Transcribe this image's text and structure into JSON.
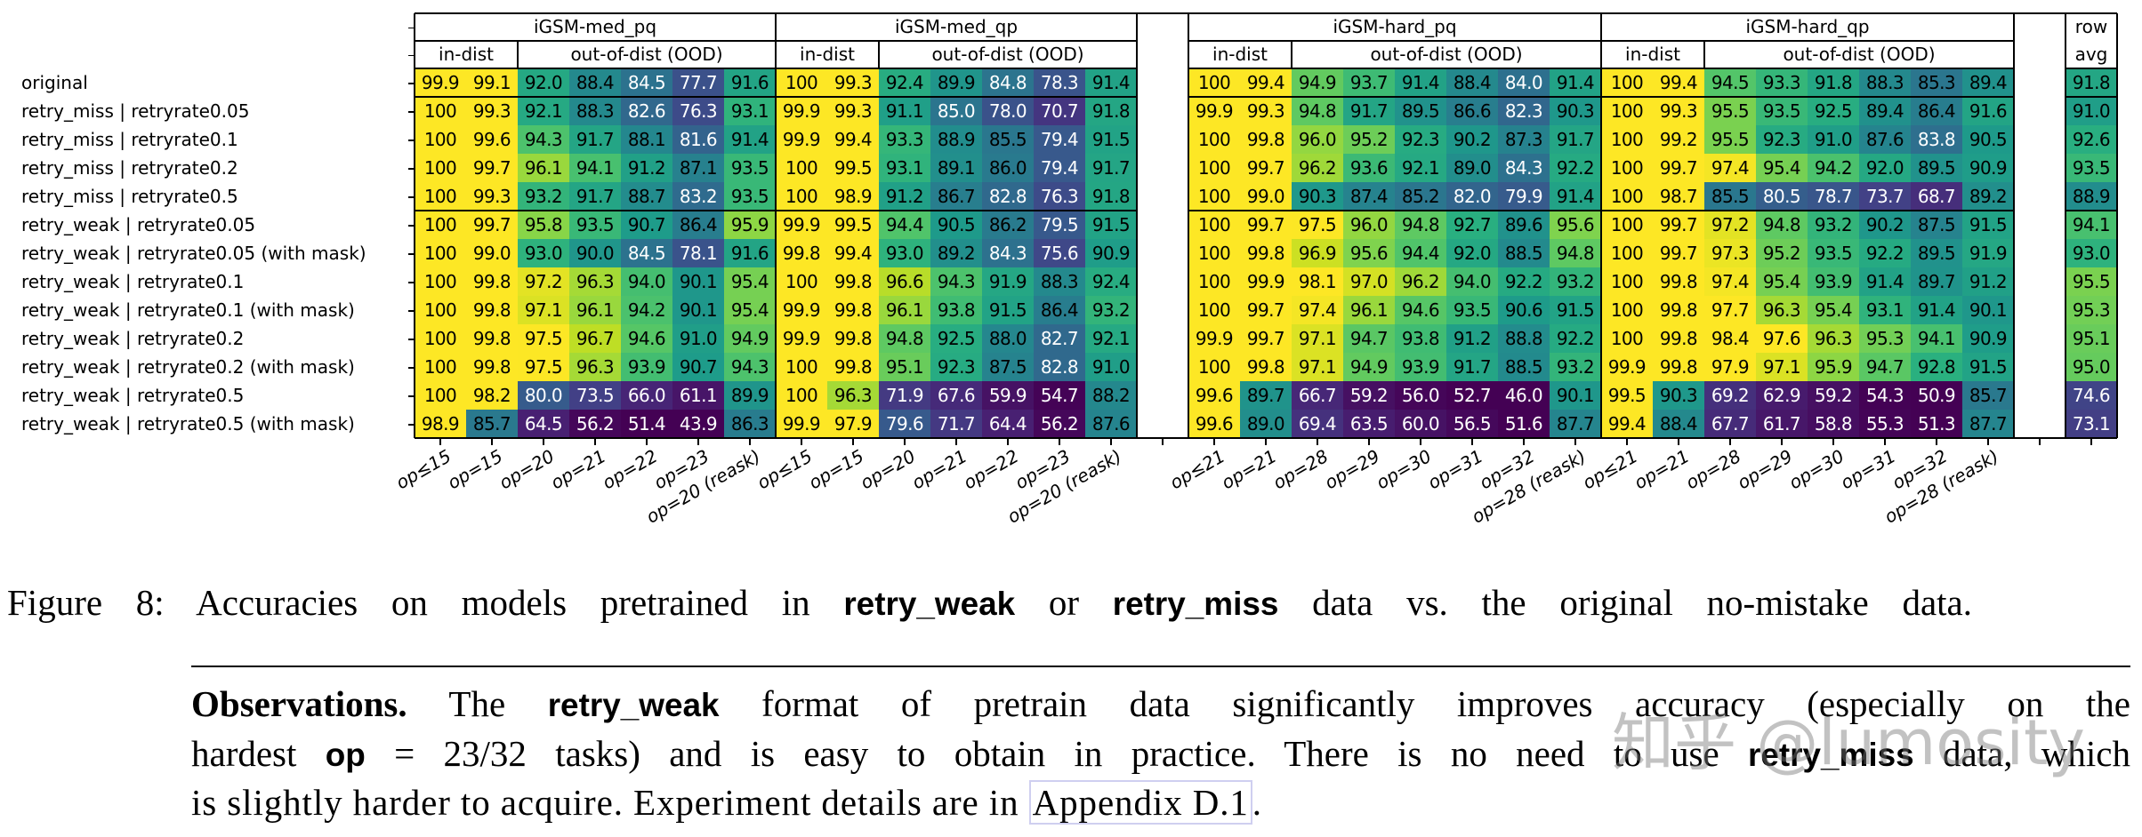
{
  "chart_data": {
    "type": "heatmap",
    "colormap": "viridis",
    "title": "",
    "row_labels": [
      "original",
      "retry_miss | retryrate0.05",
      "retry_miss | retryrate0.1",
      "retry_miss | retryrate0.2",
      "retry_miss | retryrate0.5",
      "retry_weak | retryrate0.05",
      "retry_weak | retryrate0.05 (with mask)",
      "retry_weak | retryrate0.1",
      "retry_weak | retryrate0.1 (with mask)",
      "retry_weak | retryrate0.2",
      "retry_weak | retryrate0.2 (with mask)",
      "retry_weak | retryrate0.5",
      "retry_weak | retryrate0.5 (with mask)"
    ],
    "groups": [
      {
        "title": "iGSM-med_pq",
        "subheaders": [
          {
            "label": "in-dist",
            "span": 2
          },
          {
            "label": "out-of-dist (OOD)",
            "span": 5
          }
        ],
        "columns": [
          "op≤15",
          "op=15",
          "op=20",
          "op=21",
          "op=22",
          "op=23",
          "op=20 (reask)"
        ],
        "values": [
          [
            99.9,
            99.1,
            92.0,
            88.4,
            84.5,
            77.7,
            91.6
          ],
          [
            100,
            99.3,
            92.1,
            88.3,
            82.6,
            76.3,
            93.1
          ],
          [
            100,
            99.6,
            94.3,
            91.7,
            88.1,
            81.6,
            91.4
          ],
          [
            100,
            99.7,
            96.1,
            94.1,
            91.2,
            87.1,
            93.5
          ],
          [
            100,
            99.3,
            93.2,
            91.7,
            88.7,
            83.2,
            93.5
          ],
          [
            100,
            99.7,
            95.8,
            93.5,
            90.7,
            86.4,
            95.9
          ],
          [
            100,
            99.0,
            93.0,
            90.0,
            84.5,
            78.1,
            91.6
          ],
          [
            100,
            99.8,
            97.2,
            96.3,
            94.0,
            90.1,
            95.4
          ],
          [
            100,
            99.8,
            97.1,
            96.1,
            94.2,
            90.1,
            95.4
          ],
          [
            100,
            99.8,
            97.5,
            96.7,
            94.6,
            91.0,
            94.9
          ],
          [
            100,
            99.8,
            97.5,
            96.3,
            93.9,
            90.7,
            94.3
          ],
          [
            100,
            98.2,
            80.0,
            73.5,
            66.0,
            61.1,
            89.9
          ],
          [
            98.9,
            85.7,
            64.5,
            56.2,
            51.4,
            43.9,
            86.3
          ]
        ]
      },
      {
        "title": "iGSM-med_qp",
        "subheaders": [
          {
            "label": "in-dist",
            "span": 2
          },
          {
            "label": "out-of-dist (OOD)",
            "span": 5
          }
        ],
        "columns": [
          "op≤15",
          "op=15",
          "op=20",
          "op=21",
          "op=22",
          "op=23",
          "op=20 (reask)"
        ],
        "values": [
          [
            100,
            99.3,
            92.4,
            89.9,
            84.8,
            78.3,
            91.4
          ],
          [
            99.9,
            99.3,
            91.1,
            85.0,
            78.0,
            70.7,
            91.8
          ],
          [
            99.9,
            99.4,
            93.3,
            88.9,
            85.5,
            79.4,
            91.5
          ],
          [
            100,
            99.5,
            93.1,
            89.1,
            86.0,
            79.4,
            91.7
          ],
          [
            100,
            98.9,
            91.2,
            86.7,
            82.8,
            76.3,
            91.8
          ],
          [
            99.9,
            99.5,
            94.4,
            90.5,
            86.2,
            79.5,
            91.5
          ],
          [
            99.8,
            99.4,
            93.0,
            89.2,
            84.3,
            75.6,
            90.9
          ],
          [
            100,
            99.8,
            96.6,
            94.3,
            91.9,
            88.3,
            92.4
          ],
          [
            99.9,
            99.8,
            96.1,
            93.8,
            91.5,
            86.4,
            93.2
          ],
          [
            99.9,
            99.8,
            94.8,
            92.5,
            88.0,
            82.7,
            92.1
          ],
          [
            100,
            99.8,
            95.1,
            92.3,
            87.5,
            82.8,
            91.0
          ],
          [
            100,
            96.3,
            71.9,
            67.6,
            59.9,
            54.7,
            88.2
          ],
          [
            99.9,
            97.9,
            79.6,
            71.7,
            64.4,
            56.2,
            87.6
          ]
        ]
      },
      {
        "title": "iGSM-hard_pq",
        "subheaders": [
          {
            "label": "in-dist",
            "span": 2
          },
          {
            "label": "out-of-dist (OOD)",
            "span": 6
          }
        ],
        "columns": [
          "op≤21",
          "op=21",
          "op=28",
          "op=29",
          "op=30",
          "op=31",
          "op=32",
          "op=28 (reask)"
        ],
        "values": [
          [
            100,
            99.4,
            94.9,
            93.7,
            91.4,
            88.4,
            84.0,
            91.4
          ],
          [
            99.9,
            99.3,
            94.8,
            91.7,
            89.5,
            86.6,
            82.3,
            90.3
          ],
          [
            100,
            99.8,
            96.0,
            95.2,
            92.3,
            90.2,
            87.3,
            91.7
          ],
          [
            100,
            99.7,
            96.2,
            93.6,
            92.1,
            89.0,
            84.3,
            92.2
          ],
          [
            100,
            99.0,
            90.3,
            87.4,
            85.2,
            82.0,
            79.9,
            91.4
          ],
          [
            100,
            99.7,
            97.5,
            96.0,
            94.8,
            92.7,
            89.6,
            95.6
          ],
          [
            100,
            99.8,
            96.9,
            95.6,
            94.4,
            92.0,
            88.5,
            94.8
          ],
          [
            100,
            99.9,
            98.1,
            97.0,
            96.2,
            94.0,
            92.2,
            93.2
          ],
          [
            100,
            99.7,
            97.4,
            96.1,
            94.6,
            93.5,
            90.6,
            91.5
          ],
          [
            99.9,
            99.7,
            97.1,
            94.7,
            93.8,
            91.2,
            88.8,
            92.2
          ],
          [
            100,
            99.8,
            97.1,
            94.9,
            93.9,
            91.7,
            88.5,
            93.2
          ],
          [
            99.6,
            89.7,
            66.7,
            59.2,
            56.0,
            52.7,
            46.0,
            90.1
          ],
          [
            99.6,
            89.0,
            69.4,
            63.5,
            60.0,
            56.5,
            51.6,
            87.7
          ]
        ]
      },
      {
        "title": "iGSM-hard_qp",
        "subheaders": [
          {
            "label": "in-dist",
            "span": 2
          },
          {
            "label": "out-of-dist (OOD)",
            "span": 6
          }
        ],
        "columns": [
          "op≤21",
          "op=21",
          "op=28",
          "op=29",
          "op=30",
          "op=31",
          "op=32",
          "op=28 (reask)"
        ],
        "values": [
          [
            100,
            99.4,
            94.5,
            93.3,
            91.8,
            88.3,
            85.3,
            89.4
          ],
          [
            100,
            99.3,
            95.5,
            93.5,
            92.5,
            89.4,
            86.4,
            91.6
          ],
          [
            100,
            99.2,
            95.5,
            92.3,
            91.0,
            87.6,
            83.8,
            90.5
          ],
          [
            100,
            99.7,
            97.4,
            95.4,
            94.2,
            92.0,
            89.5,
            90.9
          ],
          [
            100,
            98.7,
            85.5,
            80.5,
            78.7,
            73.7,
            68.7,
            89.2
          ],
          [
            100,
            99.7,
            97.2,
            94.8,
            93.2,
            90.2,
            87.5,
            91.5
          ],
          [
            100,
            99.7,
            97.3,
            95.2,
            93.5,
            92.2,
            89.5,
            91.9
          ],
          [
            100,
            99.8,
            97.4,
            95.4,
            93.9,
            91.4,
            89.7,
            91.2
          ],
          [
            100,
            99.8,
            97.7,
            96.3,
            95.4,
            93.1,
            91.4,
            90.1
          ],
          [
            100,
            99.8,
            98.4,
            97.6,
            96.3,
            95.3,
            94.1,
            90.9
          ],
          [
            99.9,
            99.8,
            97.9,
            97.1,
            95.9,
            94.7,
            92.8,
            91.5
          ],
          [
            99.5,
            90.3,
            69.2,
            62.9,
            59.2,
            54.3,
            50.9,
            85.7
          ],
          [
            99.4,
            88.4,
            67.7,
            61.7,
            58.8,
            55.3,
            51.3,
            87.7
          ]
        ]
      }
    ],
    "row_avg": {
      "header": [
        "row",
        "avg"
      ],
      "values": [
        91.8,
        91.0,
        92.6,
        93.5,
        88.9,
        94.1,
        93.0,
        95.5,
        95.3,
        95.1,
        95.0,
        74.6,
        73.1
      ]
    }
  },
  "caption": [
    {
      "text": "Figure 8:",
      "style": "plain"
    },
    {
      "text": " Accuracies on models pretrained in ",
      "style": "plain"
    },
    {
      "text": "retry_weak",
      "style": "sf"
    },
    {
      "text": " or ",
      "style": "plain"
    },
    {
      "text": "retry_miss",
      "style": "sf"
    },
    {
      "text": " data vs. the original no-mistake data.",
      "style": "plain"
    }
  ],
  "observations": {
    "lines": [
      [
        {
          "text": "Observations.",
          "style": "bold"
        },
        {
          "text": " The ",
          "style": "plain"
        },
        {
          "text": "retry_weak",
          "style": "sf"
        },
        {
          "text": " format of pretrain data significantly improves accuracy (especially on the",
          "style": "plain"
        }
      ],
      [
        {
          "text": "hardest ",
          "style": "plain"
        },
        {
          "text": "op",
          "style": "sf"
        },
        {
          "text": " = 23/32 tasks) and is easy to obtain in practice. There is no need to use ",
          "style": "plain"
        },
        {
          "text": "retry_miss",
          "style": "sf"
        },
        {
          "text": " data, which",
          "style": "plain"
        }
      ],
      [
        {
          "text": "is slightly harder to acquire. Experiment details are in ",
          "style": "plain"
        },
        {
          "text": "Appendix D.1",
          "style": "link"
        },
        {
          "text": ".",
          "style": "plain"
        }
      ]
    ]
  },
  "watermark": "知乎 @lumosity"
}
